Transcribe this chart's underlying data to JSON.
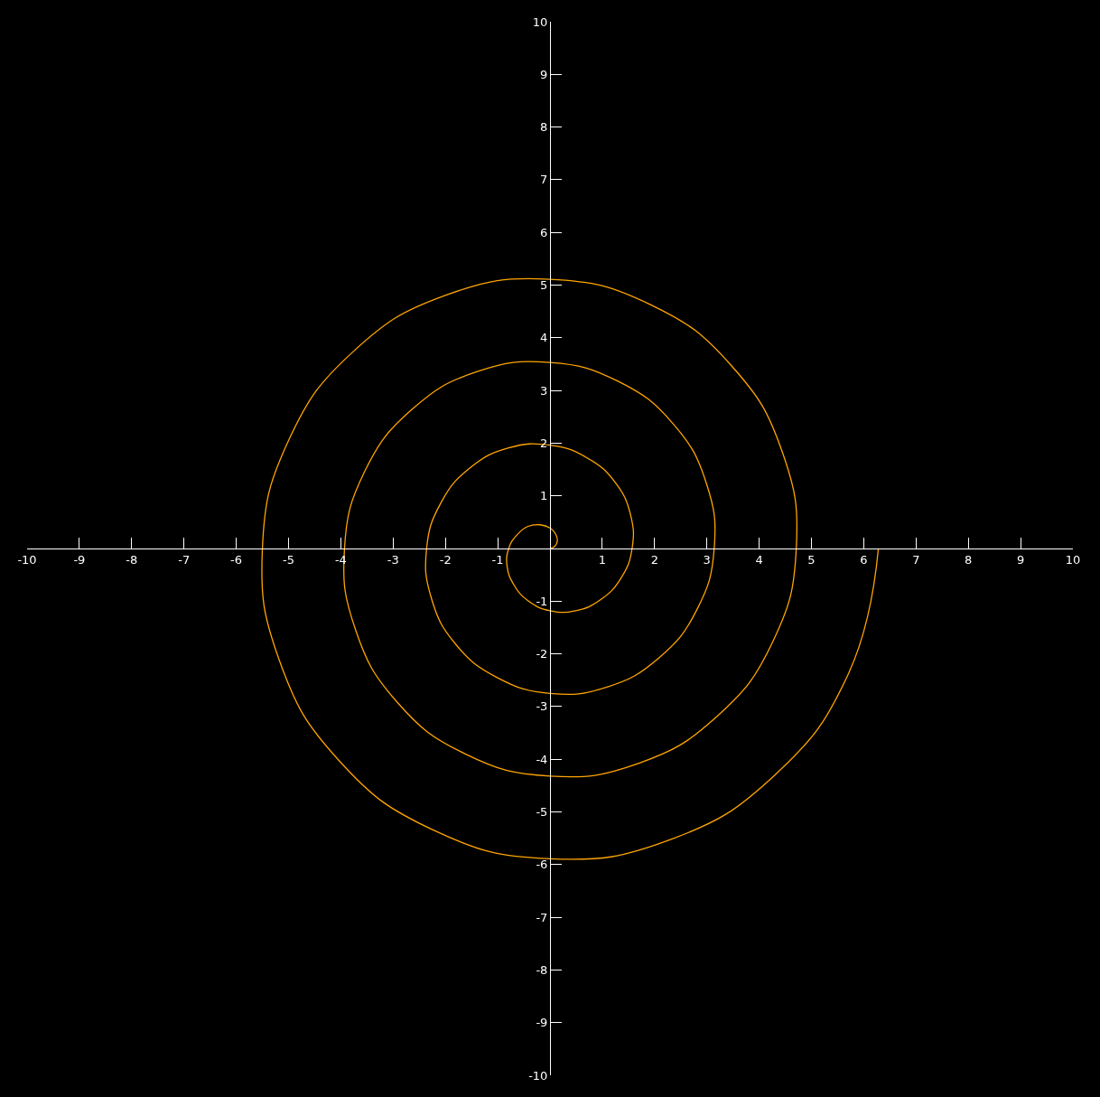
{
  "chart_data": {
    "type": "line",
    "x": [
      0,
      0.09,
      0.14,
      0.11,
      0,
      -0.19,
      -0.42,
      -0.63,
      -0.79,
      -0.82,
      -0.69,
      -0.41,
      0,
      0.49,
      0.97,
      1.36,
      1.57,
      1.54,
      1.25,
      0.71,
      0,
      -0.79,
      -1.53,
      -2.09,
      -2.36,
      -2.27,
      -1.81,
      -1.01,
      0,
      1.09,
      2.08,
      2.81,
      3.14,
      2.99,
      2.36,
      1.31,
      0,
      -1.39,
      -2.64,
      -3.54,
      -3.93,
      -3.72,
      -2.92,
      -1.62,
      0,
      1.69,
      3.19,
      4.26,
      4.71,
      4.44,
      3.47,
      1.92,
      0,
      -1.99,
      -3.75,
      -4.99,
      -5.5,
      -5.17,
      -4.03,
      -2.22,
      0,
      2.29,
      4.3,
      5.71,
      6.28
    ],
    "series": [
      {
        "color": "#ffa500",
        "values": [
          0,
          0.04,
          0.14,
          0.27,
          0.39,
          0.45,
          0.42,
          0.26,
          0,
          -0.34,
          -0.69,
          -1.0,
          -1.18,
          -1.18,
          -0.97,
          -0.56,
          0,
          0.64,
          1.25,
          1.72,
          1.96,
          1.91,
          1.53,
          0.86,
          0,
          -0.94,
          -1.81,
          -2.45,
          -2.75,
          -2.63,
          -2.08,
          -1.16,
          0,
          1.24,
          2.36,
          3.17,
          3.53,
          3.36,
          2.64,
          1.47,
          0,
          -1.54,
          -2.92,
          -3.9,
          -4.32,
          -4.08,
          -3.19,
          -1.77,
          0,
          1.84,
          3.47,
          4.63,
          5.11,
          4.81,
          3.75,
          2.07,
          0,
          -2.14,
          -4.03,
          -5.35,
          -5.89,
          -5.53,
          -4.3,
          -2.37,
          0
        ]
      }
    ],
    "xlim": [
      -10,
      10
    ],
    "ylim": [
      -10,
      10
    ],
    "xticks": [
      -10,
      -9,
      -8,
      -7,
      -6,
      -5,
      -4,
      -3,
      -2,
      -1,
      1,
      2,
      3,
      4,
      5,
      6,
      7,
      8,
      9,
      10
    ],
    "yticks": [
      -10,
      -9,
      -8,
      -7,
      -6,
      -5,
      -4,
      -3,
      -2,
      -1,
      1,
      2,
      3,
      4,
      5,
      6,
      7,
      8,
      9,
      10
    ]
  }
}
